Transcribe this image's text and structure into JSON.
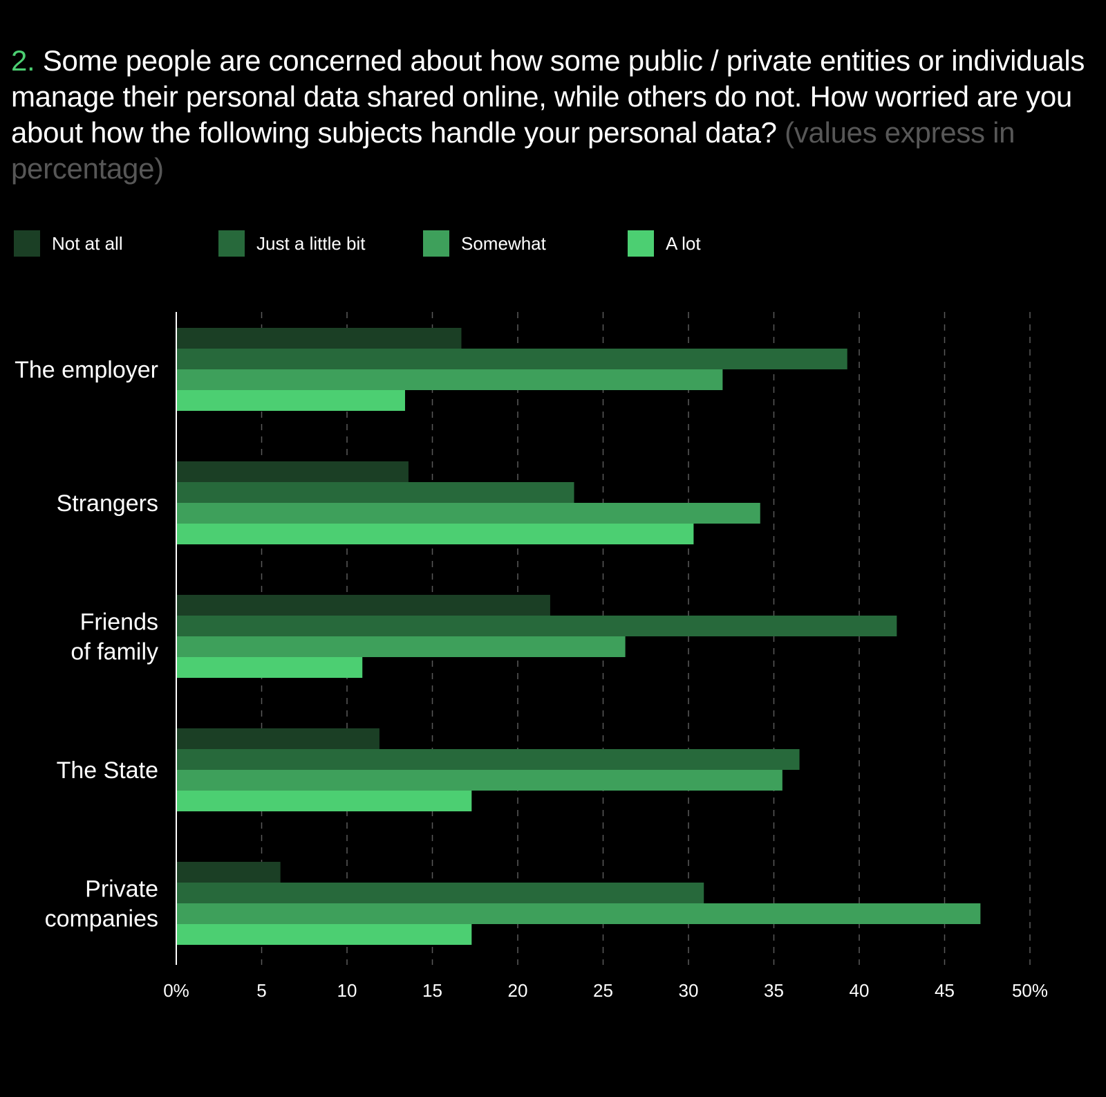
{
  "title": {
    "number": "2.",
    "text": "Some people are concerned about how some public / private entities or individuals manage their personal data shared online, while others do not. How worried are you about how the following subjects handle your personal data?",
    "note": "(values express in percentage)"
  },
  "colors": {
    "background": "#000000",
    "accent": "#4ccf72",
    "series": [
      "#1b3f25",
      "#27693b",
      "#3ea05b",
      "#4ccf72"
    ]
  },
  "chart_data": {
    "type": "bar",
    "orientation": "horizontal",
    "categories": [
      [
        "The employer"
      ],
      [
        "Strangers"
      ],
      [
        "Friends",
        "of family"
      ],
      [
        "The State"
      ],
      [
        "Private",
        "companies"
      ]
    ],
    "series": [
      {
        "name": "Not at all",
        "values": [
          16.7,
          13.6,
          21.9,
          11.9,
          6.1
        ]
      },
      {
        "name": "Just a little bit",
        "values": [
          39.3,
          23.3,
          42.2,
          36.5,
          30.9
        ]
      },
      {
        "name": "Somewhat",
        "values": [
          32.0,
          34.2,
          26.3,
          35.5,
          47.1
        ]
      },
      {
        "name": "A lot",
        "values": [
          13.4,
          30.3,
          10.9,
          17.3,
          17.3
        ]
      }
    ],
    "xlim": [
      0,
      50
    ],
    "ticks": [
      "0%",
      "5",
      "10",
      "15",
      "20",
      "25",
      "30",
      "35",
      "40",
      "45",
      "50%"
    ],
    "grid": "vertical dashed",
    "legend_position": "top"
  }
}
